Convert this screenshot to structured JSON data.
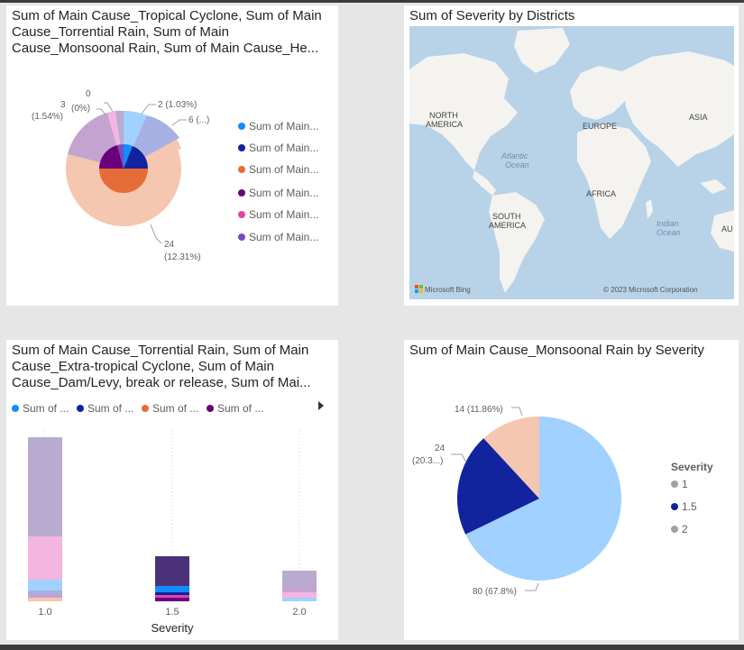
{
  "colors": {
    "c1": "#118dff",
    "c2": "#12239e",
    "c3": "#e66c37",
    "c4": "#6b007b",
    "c5": "#e044a7",
    "c6": "#744ec2",
    "light1": "#a0d1ff",
    "light2": "#a7b0e3",
    "light3": "#f5c6b0",
    "light4": "#c5a3d1",
    "light5": "#f4b5e0",
    "light6": "#b8abcf"
  },
  "tile1": {
    "title": "Sum of Main Cause_Tropical Cyclone, Sum of Main Cause_Torrential Rain, Sum of Main Cause_Monsoonal Rain, Sum of Main Cause_He...",
    "legend": [
      "Sum of Main...",
      "Sum of Main...",
      "Sum of Main...",
      "Sum of Main...",
      "Sum of Main...",
      "Sum of Main..."
    ],
    "labels": {
      "l2_value": "2 (1.03%)",
      "l6_value": "6 (...)",
      "l24_value": "24",
      "l24_pct": "(12.31%)",
      "l3_value": "3",
      "l3_pct": "(1.54%)",
      "l0_value": "0",
      "l0_pct": "(0%)"
    }
  },
  "tile2": {
    "title": "Sum of Severity by Districts",
    "continents": [
      "NORTH",
      "AMERICA",
      "EUROPE",
      "ASIA",
      "AFRICA",
      "SOUTH",
      "AMERICA",
      "AU"
    ],
    "oceans": [
      "Atlantic",
      "Ocean",
      "Indian",
      "Ocean"
    ],
    "brand_left": "Microsoft Bing",
    "brand_right": "© 2023 Microsoft Corporation"
  },
  "tile3": {
    "title": "Sum of Main Cause_Torrential Rain, Sum of Main Cause_Extra-tropical Cyclone, Sum of Main Cause_Dam/Levy, break or release, Sum of Mai...",
    "legend": [
      "Sum of ...",
      "Sum of ...",
      "Sum of ...",
      "Sum of ..."
    ],
    "xlabel": "Severity"
  },
  "tile4": {
    "title": "Sum of Main Cause_Monsoonal Rain by Severity",
    "legend_title": "Severity",
    "legend": [
      "1",
      "1.5",
      "2"
    ],
    "slice_labels": [
      "80 (67.8%)",
      "24",
      "(20.3...)",
      "14 (11.86%)"
    ]
  },
  "chart_data": [
    {
      "type": "pie",
      "title": "Sum of Main Cause_Tropical Cyclone, Sum of Main Cause_Torrential Rain, Sum of Main Cause_Monsoonal Rain, Sum of Main Cause_He...",
      "slices": [
        {
          "value": 3,
          "label": "3 (1.54%)"
        },
        {
          "value": 0,
          "label": "0 (0%)"
        },
        {
          "value": 2,
          "label": "2 (1.03%)"
        },
        {
          "value": 6,
          "label": "6 (...)"
        },
        {
          "value": 24,
          "label": "24 (12.31%)"
        }
      ]
    },
    {
      "type": "bar",
      "stacked": true,
      "title": "Sum of Main Cause_Torrential Rain, Sum of Main Cause_Extra-tropical Cyclone, Sum of Main Cause_Dam/Levy, break or release, Sum of Mai...",
      "xlabel": "Severity",
      "categories": [
        "1.0",
        "1.5",
        "2.0"
      ]
    },
    {
      "type": "pie",
      "title": "Sum of Main Cause_Monsoonal Rain by Severity",
      "legend_title": "Severity",
      "categories": [
        "1",
        "1.5",
        "2"
      ],
      "values": [
        80,
        24,
        14
      ],
      "labels": [
        "80 (67.8%)",
        "24 (20.3...)",
        "14 (11.86%)"
      ]
    }
  ]
}
